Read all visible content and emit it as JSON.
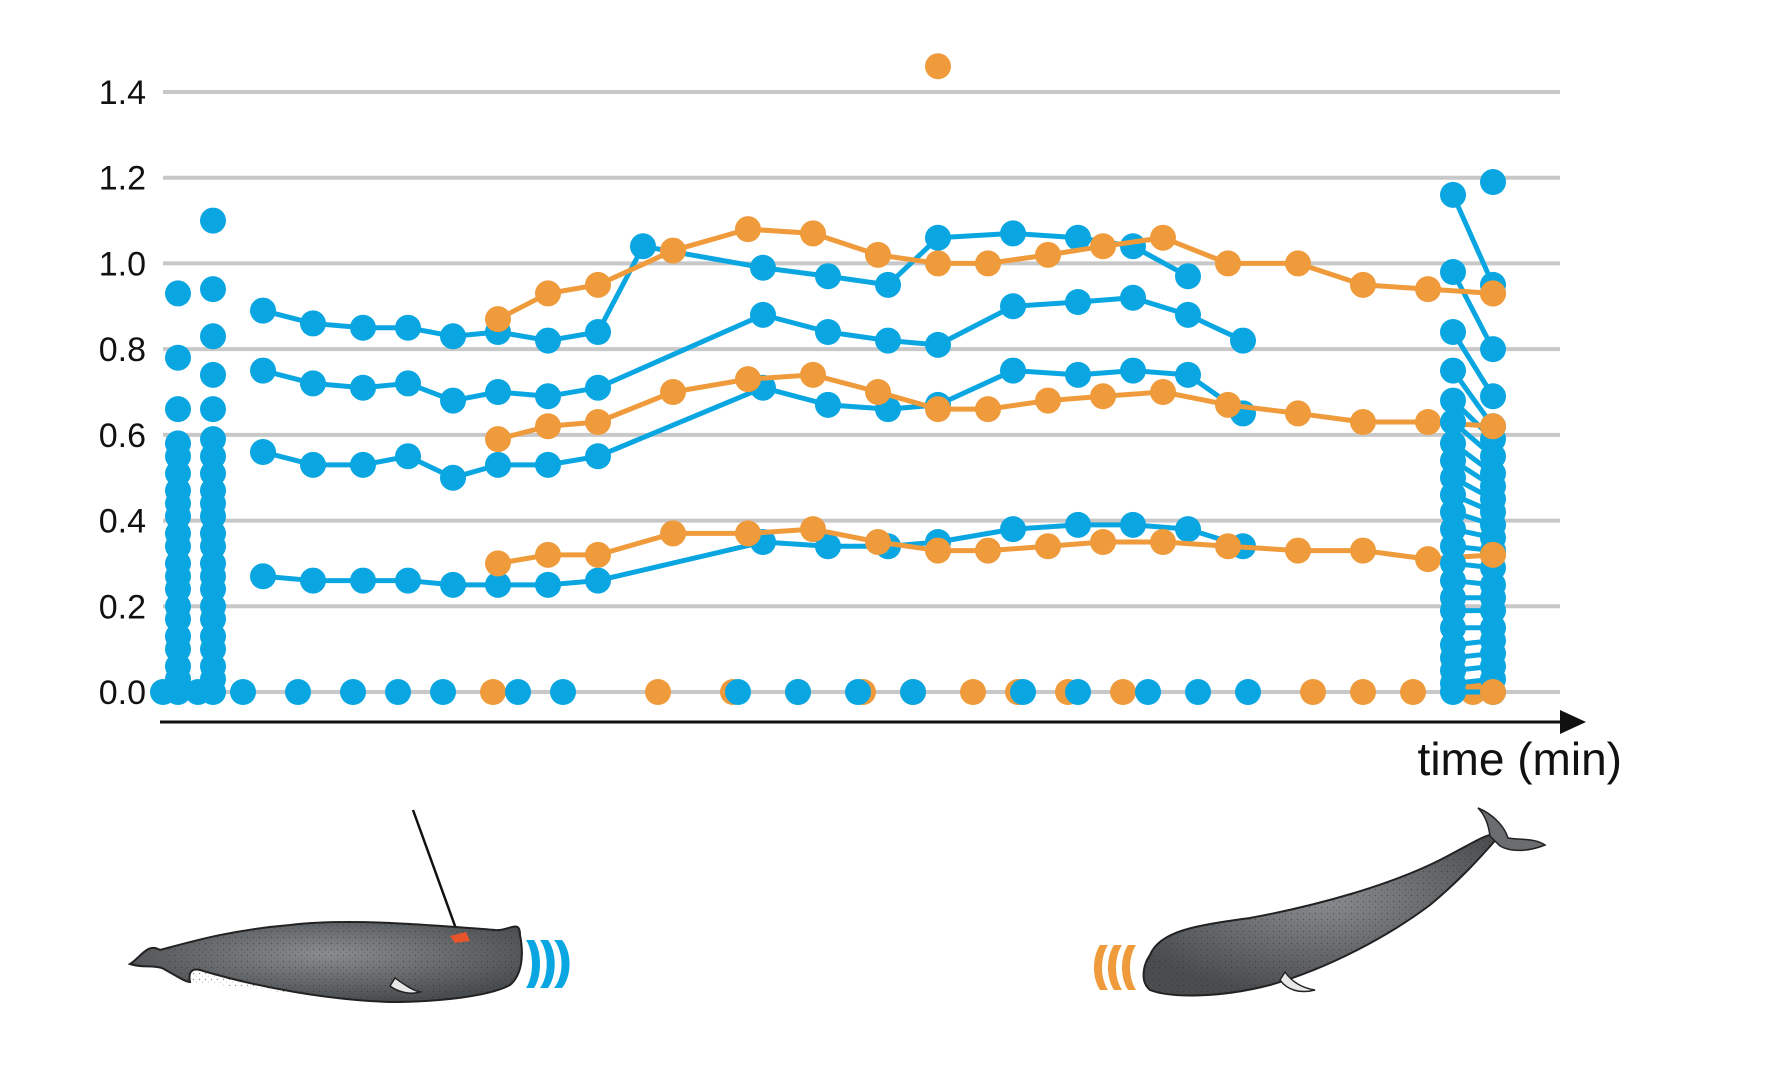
{
  "chart_data": {
    "type": "scatter",
    "title": "",
    "xlabel": "time (min)",
    "ylabel": "",
    "ylim": [
      0,
      1.4
    ],
    "xlim": [
      0,
      27
    ],
    "yticks": [
      "0.0",
      "0.2",
      "0.4",
      "0.6",
      "0.8",
      "1.0",
      "1.2",
      "1.4"
    ],
    "grid": true,
    "colors": {
      "blue": "#0aa6e2",
      "orange": "#ef9b3c",
      "grid": "#c8c8c8",
      "axis": "#111111"
    },
    "series": [
      {
        "color": "blue",
        "x": [
          2.0,
          3.0,
          4.0,
          4.9,
          5.8,
          6.7,
          7.7,
          8.7,
          9.6,
          12.0,
          13.3,
          14.5,
          15.5,
          17.0,
          18.3,
          19.4,
          20.5,
          21.6
        ],
        "y": [
          0.89,
          0.86,
          0.85,
          0.85,
          0.83,
          0.84,
          0.82,
          0.84,
          1.04,
          0.99,
          0.97,
          0.95,
          1.06,
          1.07,
          1.06,
          1.04,
          0.97,
          null
        ]
      },
      {
        "color": "blue",
        "x": [
          2.0,
          3.0,
          4.0,
          4.9,
          5.8,
          6.7,
          7.7,
          8.7,
          12.0,
          13.3,
          14.5,
          15.5,
          17.0,
          18.3,
          19.4,
          20.5,
          21.6
        ],
        "y": [
          0.75,
          0.72,
          0.71,
          0.72,
          0.68,
          0.7,
          0.69,
          0.71,
          0.88,
          0.84,
          0.82,
          0.81,
          0.9,
          0.91,
          0.92,
          0.88,
          0.82
        ]
      },
      {
        "color": "blue",
        "x": [
          2.0,
          3.0,
          4.0,
          4.9,
          5.8,
          6.7,
          7.7,
          8.7,
          12.0,
          13.3,
          14.5,
          15.5,
          17.0,
          18.3,
          19.4,
          20.5,
          21.6
        ],
        "y": [
          0.56,
          0.53,
          0.53,
          0.55,
          0.5,
          0.53,
          0.53,
          0.55,
          0.71,
          0.67,
          0.66,
          0.67,
          0.75,
          0.74,
          0.75,
          0.74,
          0.65
        ]
      },
      {
        "color": "blue",
        "x": [
          2.0,
          3.0,
          4.0,
          4.9,
          5.8,
          6.7,
          7.7,
          8.7,
          12.0,
          13.3,
          14.5,
          15.5,
          17.0,
          18.3,
          19.4,
          20.5,
          21.6
        ],
        "y": [
          0.27,
          0.26,
          0.26,
          0.26,
          0.25,
          0.25,
          0.25,
          0.26,
          0.35,
          0.34,
          0.34,
          0.35,
          0.38,
          0.39,
          0.39,
          0.38,
          0.34
        ]
      },
      {
        "color": "orange",
        "x": [
          6.7,
          7.7,
          8.7,
          10.2,
          11.7,
          13.0,
          14.3,
          15.5,
          16.5,
          17.7,
          18.8,
          20.0,
          21.3,
          22.7,
          24.0,
          25.3,
          26.6
        ],
        "y": [
          0.87,
          0.93,
          0.95,
          1.03,
          1.08,
          1.07,
          1.02,
          1.0,
          1.0,
          1.02,
          1.04,
          1.06,
          1.0,
          1.0,
          0.95,
          0.94,
          0.93
        ]
      },
      {
        "color": "orange",
        "x": [
          6.7,
          7.7,
          8.7,
          10.2,
          11.7,
          13.0,
          14.3,
          15.5,
          16.5,
          17.7,
          18.8,
          20.0,
          21.3,
          22.7,
          24.0,
          25.3,
          26.6
        ],
        "y": [
          0.59,
          0.62,
          0.63,
          0.7,
          0.73,
          0.74,
          0.7,
          0.66,
          0.66,
          0.68,
          0.69,
          0.7,
          0.67,
          0.65,
          0.63,
          0.63,
          0.62
        ]
      },
      {
        "color": "orange",
        "x": [
          6.7,
          7.7,
          8.7,
          10.2,
          11.7,
          13.0,
          14.3,
          15.5,
          16.5,
          17.7,
          18.8,
          20.0,
          21.3,
          22.7,
          24.0,
          25.3,
          26.6
        ],
        "y": [
          0.3,
          0.32,
          0.32,
          0.37,
          0.37,
          0.38,
          0.35,
          0.33,
          0.33,
          0.34,
          0.35,
          0.35,
          0.34,
          0.33,
          0.33,
          0.31,
          0.32
        ]
      }
    ],
    "isolated_points": [
      {
        "color": "orange",
        "x": 15.5,
        "y": 1.46
      },
      {
        "color": "blue",
        "x": 1.0,
        "y": 1.1
      },
      {
        "color": "blue",
        "x": 0.3,
        "y": 0.93
      },
      {
        "color": "blue",
        "x": 1.0,
        "y": 0.94
      },
      {
        "color": "blue",
        "x": 26.6,
        "y": 1.19
      }
    ],
    "blue_baseline_x": [
      0,
      0.7,
      1.6,
      2.7,
      3.8,
      4.7,
      5.6,
      7.1,
      8.0,
      11.5,
      12.7,
      13.9,
      15.0,
      17.2,
      18.3,
      19.7,
      20.7,
      21.7
    ],
    "orange_baseline_x": [
      6.6,
      9.9,
      11.4,
      12.7,
      14.0,
      15.0,
      16.2,
      17.1,
      18.1,
      19.2,
      23.0,
      24.0,
      25.0,
      26.2
    ],
    "left_column_1": {
      "x": 0.3,
      "y": [
        0.0,
        0.03,
        0.06,
        0.1,
        0.13,
        0.17,
        0.2,
        0.24,
        0.27,
        0.3,
        0.34,
        0.37,
        0.41,
        0.44,
        0.47,
        0.51,
        0.55,
        0.58,
        0.66,
        0.78
      ]
    },
    "left_column_2": {
      "x": 1.0,
      "y": [
        0.0,
        0.03,
        0.06,
        0.1,
        0.13,
        0.17,
        0.2,
        0.24,
        0.27,
        0.3,
        0.34,
        0.37,
        0.41,
        0.44,
        0.47,
        0.51,
        0.55,
        0.59,
        0.66,
        0.74,
        0.83
      ]
    },
    "right_cluster": {
      "x_start": 25.8,
      "x_end": 26.6,
      "pairs": [
        [
          1.16,
          0.95
        ],
        [
          0.98,
          0.8
        ],
        [
          0.84,
          0.69
        ],
        [
          0.75,
          0.62
        ],
        [
          0.68,
          0.59
        ],
        [
          0.63,
          0.55
        ],
        [
          0.58,
          0.51
        ],
        [
          0.54,
          0.48
        ],
        [
          0.5,
          0.45
        ],
        [
          0.46,
          0.42
        ],
        [
          0.42,
          0.39
        ],
        [
          0.38,
          0.36
        ],
        [
          0.34,
          0.33
        ],
        [
          0.3,
          0.29
        ],
        [
          0.26,
          0.25
        ],
        [
          0.22,
          0.22
        ],
        [
          0.19,
          0.19
        ],
        [
          0.15,
          0.15
        ],
        [
          0.11,
          0.12
        ],
        [
          0.08,
          0.09
        ],
        [
          0.05,
          0.06
        ],
        [
          0.02,
          0.03
        ],
        [
          0.0,
          0.0
        ]
      ]
    }
  },
  "whales": {
    "left": {
      "sound_color": "blue",
      "tag_color": "#e8542b"
    },
    "right": {
      "sound_color": "orange"
    }
  }
}
